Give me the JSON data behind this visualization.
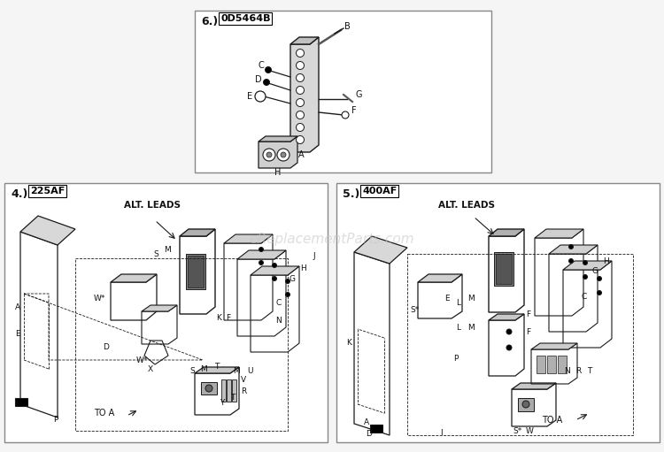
{
  "bg_color": "#f5f5f5",
  "panel_bg": "#ffffff",
  "line_color": "#1a1a1a",
  "text_color": "#111111",
  "watermark": "eReplacementParts.com",
  "watermark_color": "#c8c8c8",
  "figsize": [
    7.5,
    5.11
  ],
  "dpi": 100,
  "panel4_bounds": [
    5,
    207,
    370,
    500
  ],
  "panel5_bounds": [
    380,
    207,
    745,
    500
  ],
  "panel6_bounds": [
    220,
    12,
    555,
    195
  ]
}
